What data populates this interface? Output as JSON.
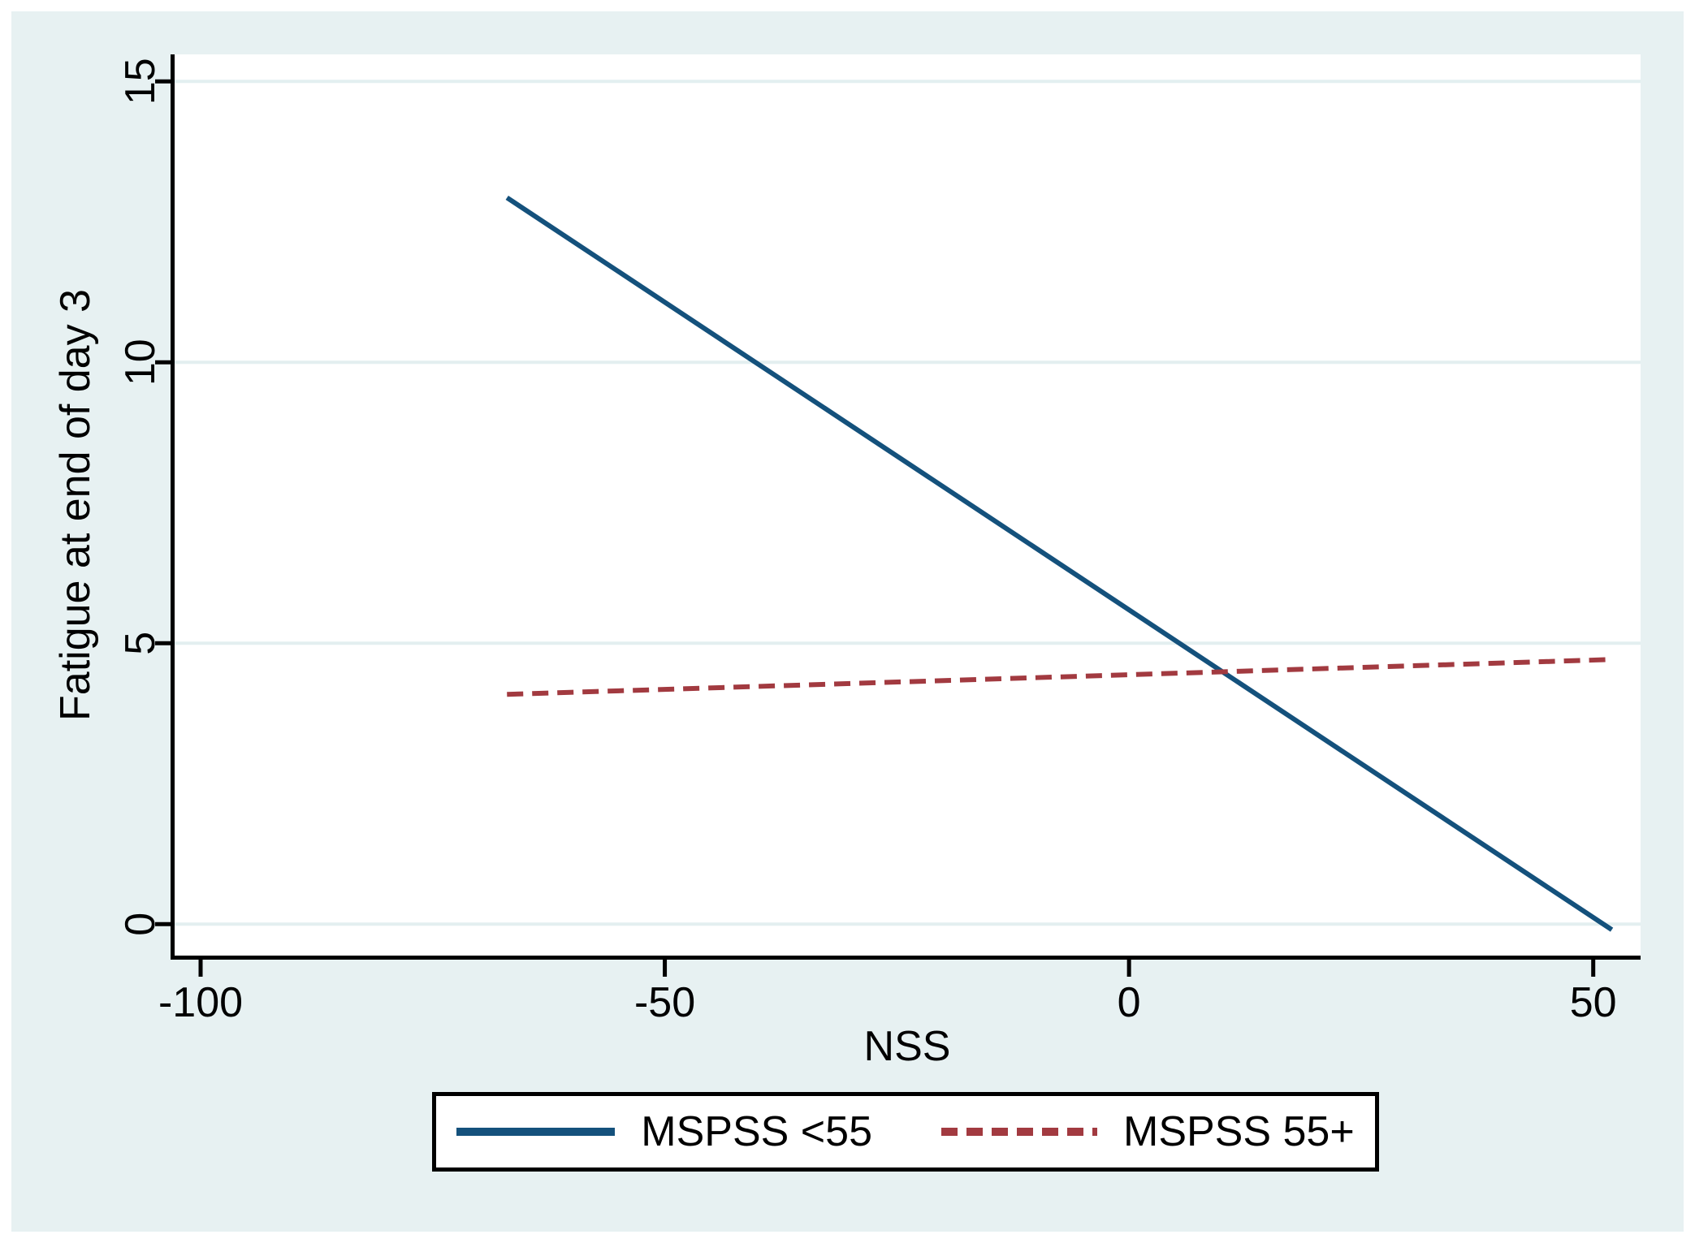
{
  "chart_data": {
    "type": "line",
    "title": "",
    "xlabel": "NSS",
    "ylabel": "Fatigue at end of day 3",
    "xlim": [
      -102.8,
      55.1
    ],
    "ylim": [
      -0.56,
      15.48
    ],
    "x_ticks": [
      -100,
      -50,
      0,
      50
    ],
    "y_ticks": [
      0,
      5,
      10,
      15
    ],
    "grid": "horizontal-only",
    "legend_position": "below-plot-centered",
    "series": [
      {
        "name": "MSPSS <55",
        "line_style": "solid",
        "color": "#14517c",
        "points": [
          {
            "x": -67,
            "y": 12.93
          },
          {
            "x": 52,
            "y": -0.1
          }
        ]
      },
      {
        "name": "MSPSS 55+",
        "line_style": "dashed",
        "color": "#a23a40",
        "points": [
          {
            "x": -67,
            "y": 4.09
          },
          {
            "x": 52,
            "y": 4.71
          }
        ]
      }
    ]
  },
  "colors": {
    "page_background": "#ffffff",
    "panel_background": "#e7f1f2",
    "plot_background": "#ffffff",
    "gridline": "#e3eff0",
    "axis": "#000000",
    "text": "#000000",
    "legend_background": "#ffffff",
    "legend_border": "#000000"
  }
}
